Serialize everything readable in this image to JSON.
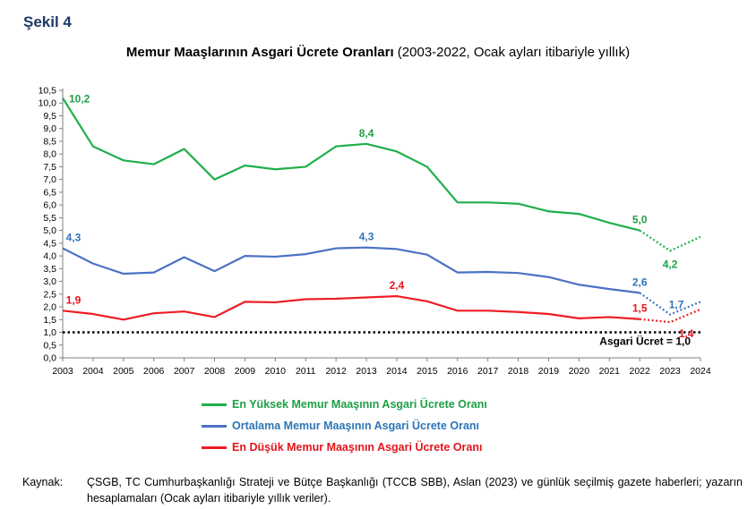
{
  "figure_label": "Şekil 4",
  "title_bold": "Memur Maaşlarının Asgari Ücrete Oranları",
  "title_normal": " (2003-2022, Ocak ayları itibariyle yıllık)",
  "source_label": "Kaynak:",
  "source_text": "ÇSGB, TC Cumhurbaşkanlığı Strateji ve Bütçe Başkanlığı (TCCB SBB), Aslan (2023) ve günlük seçilmiş gazete haberleri; yazarın hesaplamaları (Ocak ayları itibariyle yıllık veriler).",
  "chart_data": {
    "type": "line",
    "title": "Memur Maaşlarının Asgari Ücrete Oranları (2003-2022, Ocak ayları itibariyle yıllık)",
    "x": [
      2003,
      2004,
      2005,
      2006,
      2007,
      2008,
      2009,
      2010,
      2011,
      2012,
      2013,
      2014,
      2015,
      2016,
      2017,
      2018,
      2019,
      2020,
      2021,
      2022,
      2023,
      2024
    ],
    "ylim": [
      0,
      10.5
    ],
    "yticks": [
      "0,0",
      "0,5",
      "1,0",
      "1,5",
      "2,0",
      "2,5",
      "3,0",
      "3,5",
      "4,0",
      "4,5",
      "5,0",
      "5,5",
      "6,0",
      "6,5",
      "7,0",
      "7,5",
      "8,0",
      "8,5",
      "9,0",
      "9,5",
      "10,0",
      "10,5"
    ],
    "grid": false,
    "series": [
      {
        "name": "En Yüksek Memur Maaşının Asgari Ücrete Oranı",
        "color": "#1faf4b",
        "label_color": "#1e9e45",
        "values": [
          10.2,
          8.3,
          7.75,
          7.6,
          8.2,
          7.0,
          7.55,
          7.4,
          7.5,
          8.3,
          8.4,
          8.1,
          7.5,
          6.1,
          6.1,
          6.05,
          5.75,
          5.65,
          5.3,
          5.0,
          4.2,
          4.75
        ],
        "dotted_from_index": 19,
        "labels": [
          {
            "index": 0,
            "text": "10,2",
            "pos": "right"
          },
          {
            "index": 10,
            "text": "8,4",
            "pos": "above"
          },
          {
            "index": 19,
            "text": "5,0",
            "pos": "above"
          },
          {
            "index": 20,
            "text": "4,2",
            "pos": "below"
          }
        ]
      },
      {
        "name": "Ortalama Memur Maaşının Asgari Ücrete Oranı",
        "color": "#4a72c4",
        "label_color": "#2e75b6",
        "values": [
          4.3,
          3.7,
          3.3,
          3.35,
          3.95,
          3.4,
          4.0,
          3.97,
          4.07,
          4.3,
          4.33,
          4.27,
          4.05,
          3.35,
          3.37,
          3.33,
          3.17,
          2.87,
          2.7,
          2.55,
          1.7,
          2.2
        ],
        "dotted_from_index": 19,
        "labels": [
          {
            "index": 0,
            "text": "4,3",
            "pos": "above"
          },
          {
            "index": 10,
            "text": "4,3",
            "pos": "above"
          },
          {
            "index": 19,
            "text": "2,6",
            "pos": "above"
          },
          {
            "index": 20,
            "text": "1,7",
            "pos": "above-right"
          }
        ]
      },
      {
        "name": "En Düşük Memur Maaşının Asgari Ücrete Oranı",
        "color": "#ee1c25",
        "label_color": "#e3141c",
        "values": [
          1.85,
          1.72,
          1.5,
          1.75,
          1.82,
          1.6,
          2.2,
          2.18,
          2.3,
          2.32,
          2.37,
          2.42,
          2.22,
          1.85,
          1.85,
          1.8,
          1.72,
          1.55,
          1.6,
          1.52,
          1.4,
          1.9
        ],
        "dotted_from_index": 19,
        "labels": [
          {
            "index": 0,
            "text": "1,9",
            "pos": "above"
          },
          {
            "index": 11,
            "text": "2,4",
            "pos": "above"
          },
          {
            "index": 19,
            "text": "1,5",
            "pos": "above"
          },
          {
            "index": 20,
            "text": "1,4",
            "pos": "below-right"
          }
        ]
      }
    ],
    "reference_line": {
      "value": 1.0,
      "label": "Asgari Ücret = 1,0"
    },
    "legend_position": "bottom"
  }
}
